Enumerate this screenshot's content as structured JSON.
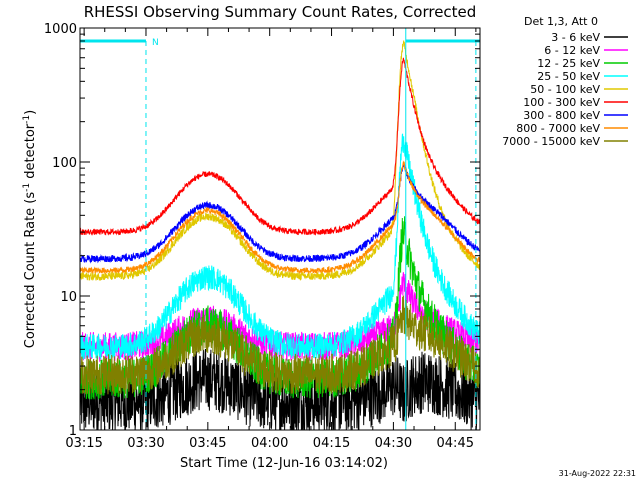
{
  "chart_data": {
    "type": "line",
    "title": "RHESSI Observing Summary Count Rates, Corrected",
    "xlabel": "Start Time (12-Jun-16 03:14:02)",
    "ylabel_main": "Corrected Count Rate (s",
    "ylabel_sup1": "-1",
    "ylabel_mid": " detector",
    "ylabel_sup2": "-1",
    "ylabel_end": ")",
    "yscale": "log",
    "ylim": [
      1,
      1000
    ],
    "xlim_minutes": [
      0,
      97
    ],
    "x_ticks": [
      {
        "m": 1,
        "label": "03:15"
      },
      {
        "m": 16,
        "label": "03:30"
      },
      {
        "m": 31,
        "label": "03:45"
      },
      {
        "m": 46,
        "label": "04:00"
      },
      {
        "m": 61,
        "label": "04:15"
      },
      {
        "m": 76,
        "label": "04:30"
      },
      {
        "m": 91,
        "label": "04:45"
      }
    ],
    "y_ticks": [
      {
        "v": 1,
        "label": "1"
      },
      {
        "v": 10,
        "label": "10"
      },
      {
        "v": 100,
        "label": "100"
      },
      {
        "v": 1000,
        "label": "1000"
      }
    ],
    "legend_title": "Det 1,3, Att 0",
    "series": [
      {
        "name": "3 - 6 keV",
        "color": "#000000",
        "base": 1.6,
        "hump": 1.5,
        "flare": 0.8,
        "noise": 0.55
      },
      {
        "name": "6 - 12 keV",
        "color": "#ff00ff",
        "base": 4.2,
        "hump": 1.6,
        "flare": 2.0,
        "noise": 0.25
      },
      {
        "name": "12 - 25 keV",
        "color": "#00cc00",
        "base": 2.4,
        "hump": 2.5,
        "flare": 5.5,
        "noise": 0.35
      },
      {
        "name": "25 - 50 keV",
        "color": "#00ffff",
        "base": 4.2,
        "hump": 3.3,
        "flare": 12,
        "noise": 0.22
      },
      {
        "name": "50 - 100 keV",
        "color": "#e0c800",
        "base": 14,
        "hump": 2.8,
        "flare": 22,
        "noise": 0.07
      },
      {
        "name": "100 - 300 keV",
        "color": "#ff0000",
        "base": 30,
        "hump": 2.7,
        "flare": 8,
        "noise": 0.05
      },
      {
        "name": "300 - 800 keV",
        "color": "#0000ff",
        "base": 19,
        "hump": 2.5,
        "flare": 2.2,
        "noise": 0.06
      },
      {
        "name": "800 - 7000 keV",
        "color": "#ff8c00",
        "base": 15.5,
        "hump": 2.8,
        "flare": 2.5,
        "noise": 0.05
      },
      {
        "name": "7000 - 15000 keV",
        "color": "#808000",
        "base": 2.6,
        "hump": 2.0,
        "flare": 1.5,
        "noise": 0.35
      }
    ],
    "flags": {
      "label": "N",
      "bars": [
        [
          0,
          16
        ],
        [
          79,
          97
        ]
      ],
      "vline_dashed": [
        16,
        96
      ],
      "vline_solid": [
        79
      ],
      "level": 800
    },
    "flare_peak_minute": 78.5
  },
  "footer": {
    "timestamp": "31-Aug-2022 22:31"
  }
}
